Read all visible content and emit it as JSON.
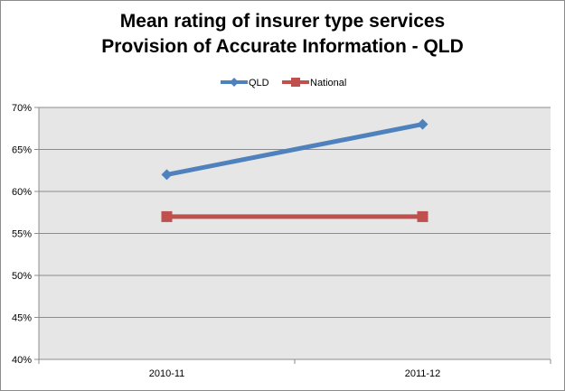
{
  "chart_data": {
    "type": "line",
    "title_lines": [
      "Mean rating of insurer type services",
      "Provision of Accurate Information - QLD"
    ],
    "categories": [
      "2010-11",
      "2011-12"
    ],
    "series": [
      {
        "name": "QLD",
        "values": [
          62,
          68
        ],
        "color": "#4f81bd",
        "marker": "diamond"
      },
      {
        "name": "National",
        "values": [
          57,
          57
        ],
        "color": "#c0504d",
        "marker": "square"
      }
    ],
    "y_ticks": [
      "40%",
      "45%",
      "50%",
      "55%",
      "60%",
      "65%",
      "70%"
    ],
    "ylim": [
      40,
      70
    ],
    "y_step": 5,
    "legend_position": "top",
    "grid": true,
    "plot_background": "#e6e6e6"
  }
}
